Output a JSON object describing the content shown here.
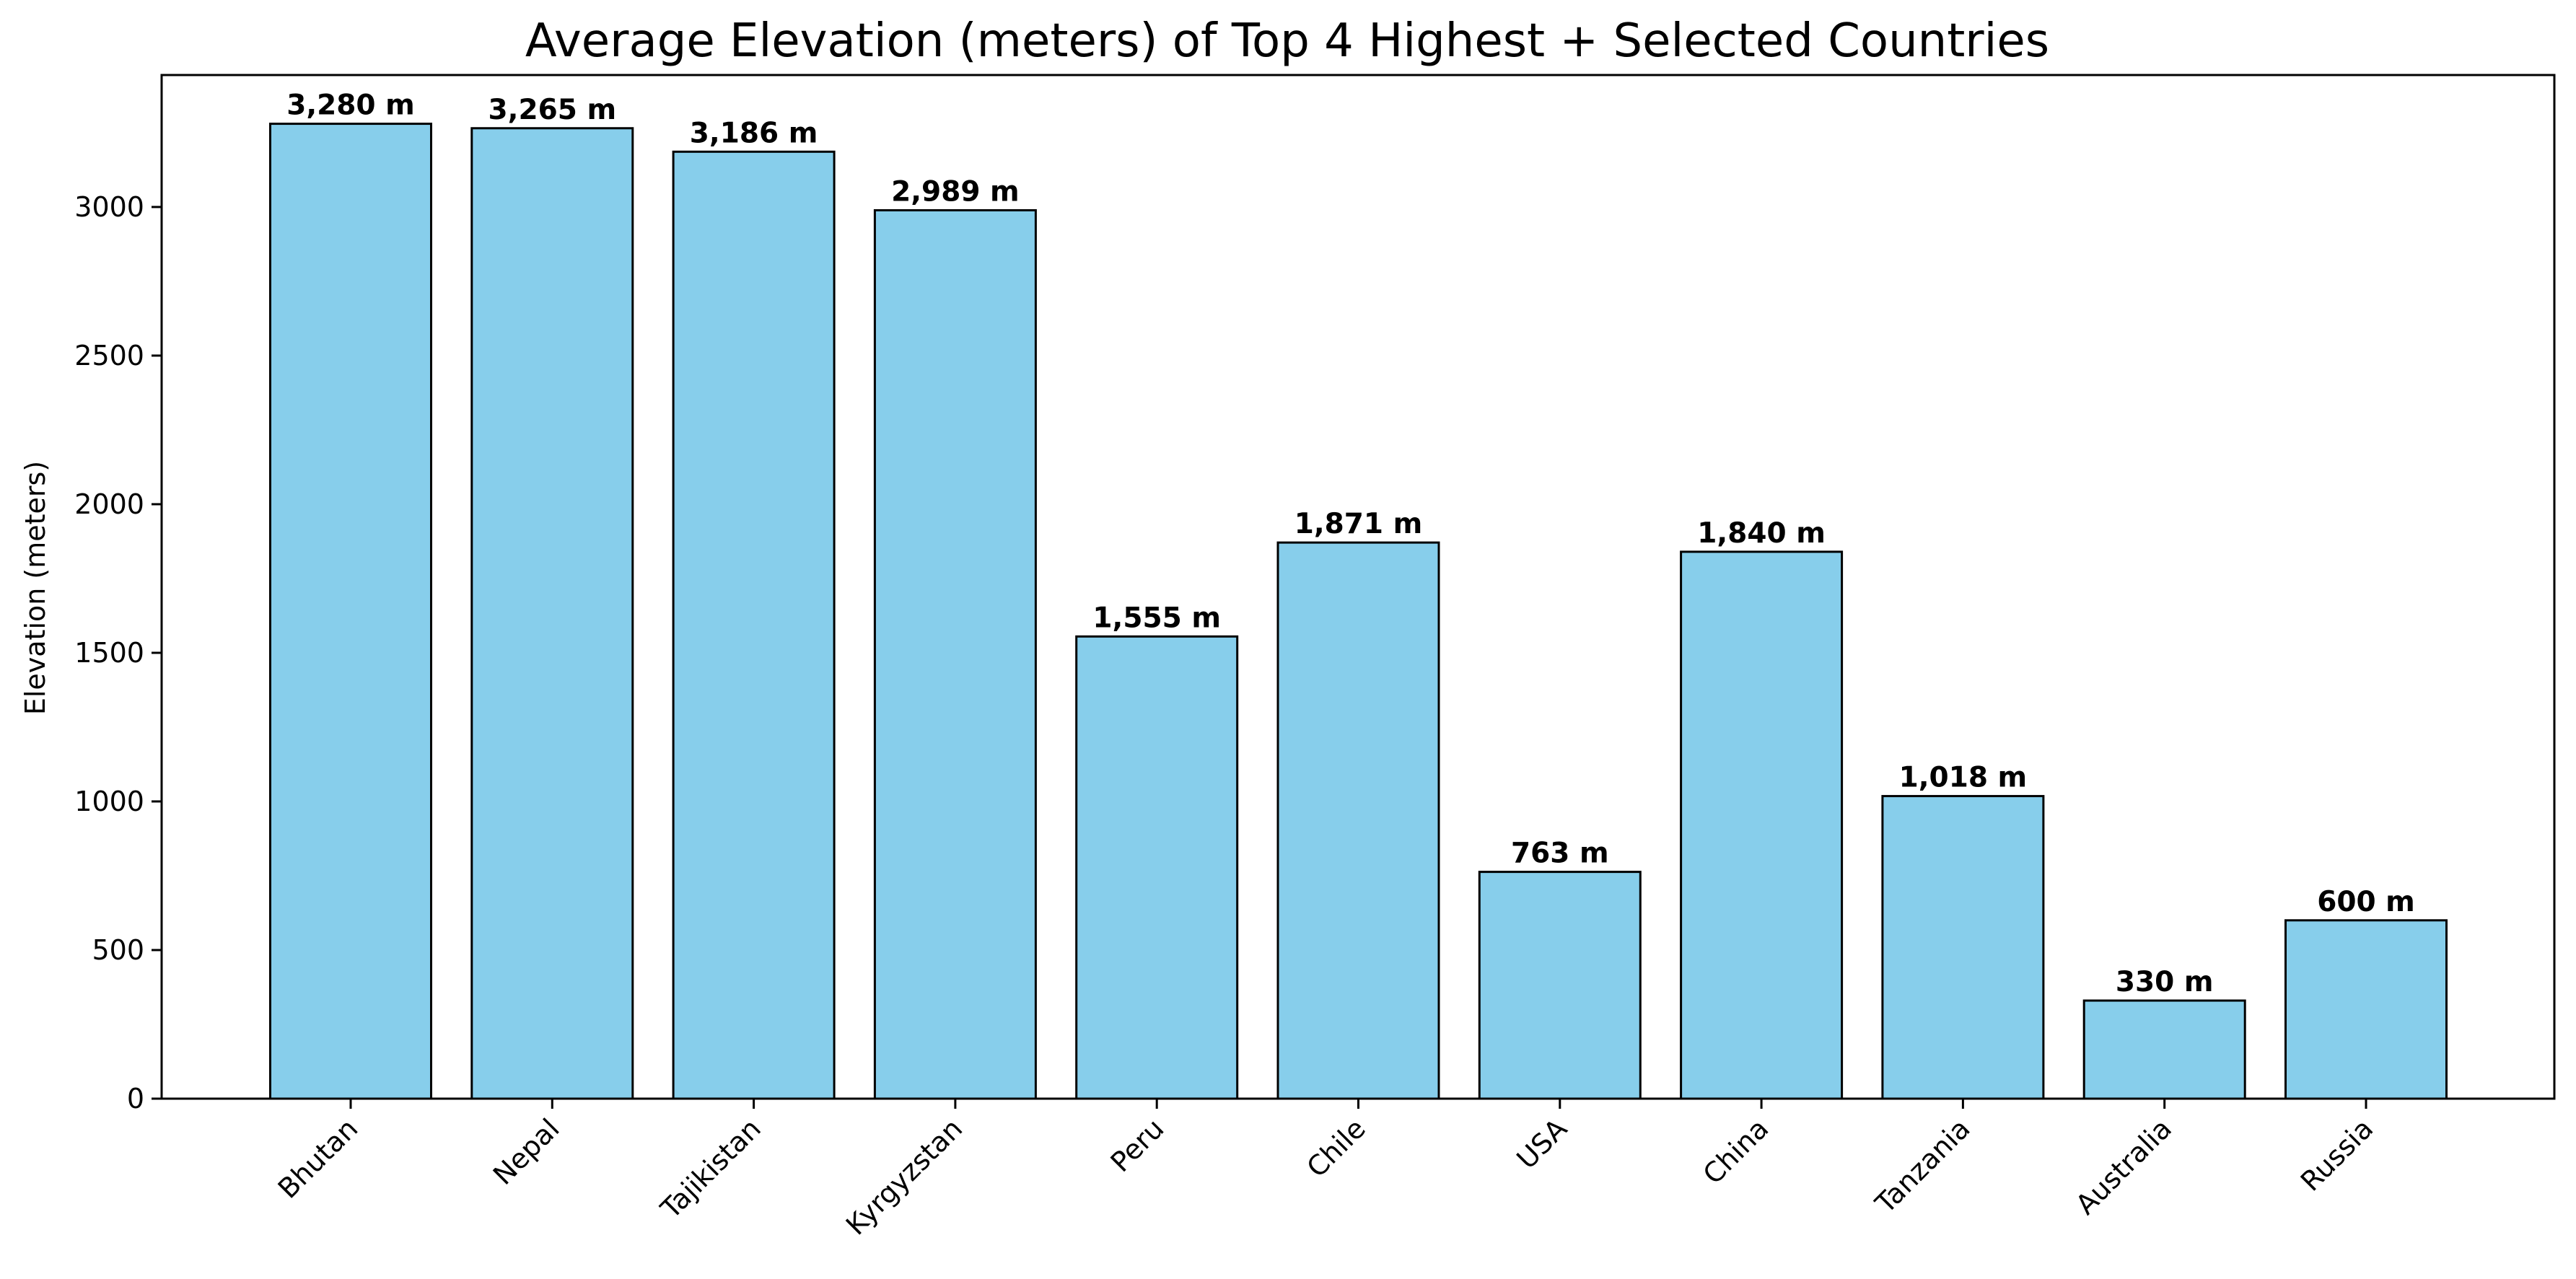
{
  "chart_data": {
    "type": "bar",
    "title": "Average Elevation (meters) of Top 4 Highest + Selected Countries",
    "xlabel": "",
    "ylabel": "Elevation (meters)",
    "categories": [
      "Bhutan",
      "Nepal",
      "Tajikistan",
      "Kyrgyzstan",
      "Peru",
      "Chile",
      "USA",
      "China",
      "Tanzania",
      "Australia",
      "Russia"
    ],
    "values": [
      3280,
      3265,
      3186,
      2989,
      1555,
      1871,
      763,
      1840,
      1018,
      330,
      600
    ],
    "value_labels": [
      "3,280 m",
      "3,265 m",
      "3,186 m",
      "2,989 m",
      "1,555 m",
      "1,871 m",
      "763 m",
      "1,840 m",
      "1,018 m",
      "330 m",
      "600 m"
    ],
    "yticks": [
      0,
      500,
      1000,
      1500,
      2000,
      2500,
      3000
    ],
    "ylim": [
      0,
      3444
    ],
    "grid": false,
    "legend": "none",
    "bar_color": "#87CEEB",
    "edge_color": "#000000"
  }
}
